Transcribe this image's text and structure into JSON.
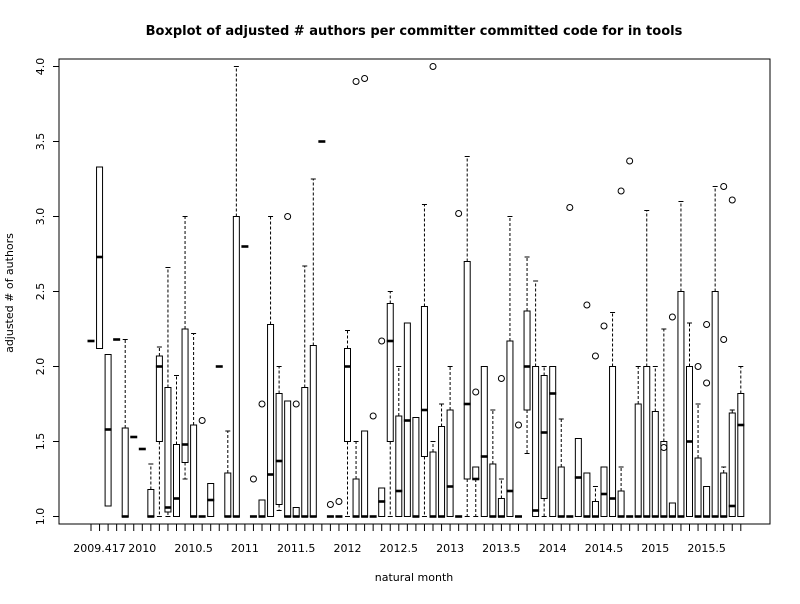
{
  "chart_data": {
    "type": "boxplot",
    "title": "Boxplot of adjusted # authors per committer committed code for in tools",
    "xlabel": "natural month",
    "ylabel": "adjusted # of authors",
    "ylim": [
      0.95,
      4.05
    ],
    "y_ticks": [
      "1.0",
      "1.5",
      "2.0",
      "2.5",
      "3.0",
      "3.5",
      "4.0"
    ],
    "x_tick_labels": [
      "2009.417",
      "2010",
      "2010.5",
      "2011",
      "2011.5",
      "2012",
      "2012.5",
      "2013",
      "2013.5",
      "2014",
      "2014.5",
      "2015",
      "2015.5"
    ],
    "x_tick_label_slots": [
      1,
      6,
      12,
      18,
      24,
      30,
      36,
      42,
      48,
      54,
      60,
      66,
      72
    ],
    "num_slots": 77,
    "boxes": [
      {
        "q1": 2.17,
        "med": 2.17,
        "q3": 2.17,
        "lo": 2.17,
        "hi": 2.17
      },
      {
        "q1": 2.12,
        "med": 2.73,
        "q3": 3.33,
        "lo": 2.12,
        "hi": 3.33
      },
      {
        "q1": 1.07,
        "med": 1.58,
        "q3": 2.08,
        "lo": 1.07,
        "hi": 2.08
      },
      {
        "q1": 2.18,
        "med": 2.18,
        "q3": 2.18,
        "lo": 2.18,
        "hi": 2.18
      },
      {
        "q1": 1.0,
        "med": 1.0,
        "q3": 1.59,
        "lo": 1.0,
        "hi": 2.18
      },
      {
        "q1": 1.53,
        "med": 1.53,
        "q3": 1.53,
        "lo": 1.53,
        "hi": 1.53
      },
      {
        "q1": 1.45,
        "med": 1.45,
        "q3": 1.45,
        "lo": 1.45,
        "hi": 1.45
      },
      {
        "q1": 1.0,
        "med": 1.0,
        "q3": 1.18,
        "lo": 1.0,
        "hi": 1.35
      },
      {
        "q1": 1.5,
        "med": 2.0,
        "q3": 2.07,
        "lo": 1.0,
        "hi": 2.13
      },
      {
        "q1": 1.03,
        "med": 1.06,
        "q3": 1.86,
        "lo": 1.0,
        "hi": 2.66
      },
      {
        "q1": 1.0,
        "med": 1.12,
        "q3": 1.48,
        "lo": 1.0,
        "hi": 1.94
      },
      {
        "q1": 1.36,
        "med": 1.48,
        "q3": 2.25,
        "lo": 1.25,
        "hi": 3.0
      },
      {
        "q1": 1.0,
        "med": 1.0,
        "q3": 1.61,
        "lo": 1.0,
        "hi": 2.22
      },
      {
        "q1": 1.0,
        "med": 1.0,
        "q3": 1.0,
        "lo": 1.0,
        "hi": 1.0,
        "outliers": [
          1.64
        ]
      },
      {
        "q1": 1.0,
        "med": 1.11,
        "q3": 1.22,
        "lo": 1.0,
        "hi": 1.22
      },
      {
        "q1": 2.0,
        "med": 2.0,
        "q3": 2.0,
        "lo": 2.0,
        "hi": 2.0
      },
      {
        "q1": 1.0,
        "med": 1.0,
        "q3": 1.29,
        "lo": 1.0,
        "hi": 1.57
      },
      {
        "q1": 1.0,
        "med": 1.0,
        "q3": 3.0,
        "lo": 1.0,
        "hi": 4.0
      },
      {
        "q1": 2.8,
        "med": 2.8,
        "q3": 2.8,
        "lo": 2.8,
        "hi": 2.8
      },
      {
        "q1": 1.0,
        "med": 1.0,
        "q3": 1.0,
        "lo": 1.0,
        "hi": 1.0,
        "outliers": [
          1.25
        ]
      },
      {
        "q1": 1.0,
        "med": 1.0,
        "q3": 1.11,
        "lo": 1.0,
        "hi": 1.11,
        "outliers": [
          1.75
        ]
      },
      {
        "q1": 1.0,
        "med": 1.28,
        "q3": 2.28,
        "lo": 1.0,
        "hi": 3.0
      },
      {
        "q1": 1.08,
        "med": 1.37,
        "q3": 1.82,
        "lo": 1.04,
        "hi": 2.0
      },
      {
        "q1": 1.0,
        "med": 1.0,
        "q3": 1.77,
        "lo": 1.0,
        "hi": 1.77,
        "outliers": [
          3.0
        ]
      },
      {
        "q1": 1.0,
        "med": 1.0,
        "q3": 1.06,
        "lo": 1.0,
        "hi": 1.06,
        "outliers": [
          1.75
        ]
      },
      {
        "q1": 1.0,
        "med": 1.0,
        "q3": 1.86,
        "lo": 1.0,
        "hi": 2.67
      },
      {
        "q1": 1.0,
        "med": 1.0,
        "q3": 2.14,
        "lo": 1.0,
        "hi": 3.25
      },
      {
        "q1": 3.5,
        "med": 3.5,
        "q3": 3.5,
        "lo": 3.5,
        "hi": 3.5
      },
      {
        "q1": 1.0,
        "med": 1.0,
        "q3": 1.0,
        "lo": 1.0,
        "hi": 1.0,
        "outliers": [
          1.08
        ]
      },
      {
        "q1": 1.0,
        "med": 1.0,
        "q3": 1.0,
        "lo": 1.0,
        "hi": 1.0,
        "outliers": [
          1.1
        ]
      },
      {
        "q1": 1.5,
        "med": 2.0,
        "q3": 2.12,
        "lo": 1.0,
        "hi": 2.24
      },
      {
        "q1": 1.0,
        "med": 1.0,
        "q3": 1.25,
        "lo": 1.0,
        "hi": 1.5,
        "outliers": [
          3.9
        ]
      },
      {
        "q1": 1.0,
        "med": 1.0,
        "q3": 1.57,
        "lo": 1.0,
        "hi": 1.57,
        "outliers": [
          3.92
        ]
      },
      {
        "q1": 1.0,
        "med": 1.0,
        "q3": 1.0,
        "lo": 1.0,
        "hi": 1.0,
        "outliers": [
          1.67
        ]
      },
      {
        "q1": 1.0,
        "med": 1.1,
        "q3": 1.19,
        "lo": 1.0,
        "hi": 1.19,
        "outliers": [
          2.17
        ]
      },
      {
        "q1": 1.5,
        "med": 2.17,
        "q3": 2.42,
        "lo": 1.0,
        "hi": 2.5
      },
      {
        "q1": 1.0,
        "med": 1.17,
        "q3": 1.67,
        "lo": 1.0,
        "hi": 2.0
      },
      {
        "q1": 1.0,
        "med": 1.64,
        "q3": 2.29,
        "lo": 1.0,
        "hi": 2.29
      },
      {
        "q1": 1.0,
        "med": 1.0,
        "q3": 1.66,
        "lo": 1.0,
        "hi": 1.66
      },
      {
        "q1": 1.4,
        "med": 1.71,
        "q3": 2.4,
        "lo": 1.0,
        "hi": 3.08
      },
      {
        "q1": 1.0,
        "med": 1.0,
        "q3": 1.43,
        "lo": 1.0,
        "hi": 1.5,
        "outliers": [
          4.0
        ]
      },
      {
        "q1": 1.0,
        "med": 1.0,
        "q3": 1.6,
        "lo": 1.0,
        "hi": 1.75
      },
      {
        "q1": 1.0,
        "med": 1.2,
        "q3": 1.71,
        "lo": 1.0,
        "hi": 2.0
      },
      {
        "q1": 1.0,
        "med": 1.0,
        "q3": 1.0,
        "lo": 1.0,
        "hi": 1.0,
        "outliers": [
          3.02
        ]
      },
      {
        "q1": 1.25,
        "med": 1.75,
        "q3": 2.7,
        "lo": 1.0,
        "hi": 3.4
      },
      {
        "q1": 1.25,
        "med": 1.25,
        "q3": 1.33,
        "lo": 1.0,
        "hi": 1.33,
        "outliers": [
          1.83
        ]
      },
      {
        "q1": 1.0,
        "med": 1.4,
        "q3": 2.0,
        "lo": 1.0,
        "hi": 2.0
      },
      {
        "q1": 1.0,
        "med": 1.0,
        "q3": 1.35,
        "lo": 1.0,
        "hi": 1.71
      },
      {
        "q1": 1.0,
        "med": 1.0,
        "q3": 1.12,
        "lo": 1.0,
        "hi": 1.25,
        "outliers": [
          1.92
        ]
      },
      {
        "q1": 1.0,
        "med": 1.17,
        "q3": 2.17,
        "lo": 1.0,
        "hi": 3.0
      },
      {
        "q1": 1.0,
        "med": 1.0,
        "q3": 1.0,
        "lo": 1.0,
        "hi": 1.0,
        "outliers": [
          1.61
        ]
      },
      {
        "q1": 1.71,
        "med": 2.0,
        "q3": 2.37,
        "lo": 1.42,
        "hi": 2.73
      },
      {
        "q1": 1.0,
        "med": 1.04,
        "q3": 2.0,
        "lo": 1.0,
        "hi": 2.57
      },
      {
        "q1": 1.12,
        "med": 1.56,
        "q3": 1.94,
        "lo": 1.0,
        "hi": 2.0
      },
      {
        "q1": 1.0,
        "med": 1.82,
        "q3": 2.0,
        "lo": 1.0,
        "hi": 2.0
      },
      {
        "q1": 1.0,
        "med": 1.0,
        "q3": 1.33,
        "lo": 1.0,
        "hi": 1.65
      },
      {
        "q1": 1.0,
        "med": 1.0,
        "q3": 1.0,
        "lo": 1.0,
        "hi": 1.0,
        "outliers": [
          3.06
        ]
      },
      {
        "q1": 1.0,
        "med": 1.26,
        "q3": 1.52,
        "lo": 1.0,
        "hi": 1.52
      },
      {
        "q1": 1.0,
        "med": 1.0,
        "q3": 1.29,
        "lo": 1.0,
        "hi": 1.29,
        "outliers": [
          2.41
        ]
      },
      {
        "q1": 1.0,
        "med": 1.0,
        "q3": 1.1,
        "lo": 1.0,
        "hi": 1.2,
        "outliers": [
          2.07
        ]
      },
      {
        "q1": 1.0,
        "med": 1.15,
        "q3": 1.33,
        "lo": 1.0,
        "hi": 1.33,
        "outliers": [
          2.27
        ]
      },
      {
        "q1": 1.0,
        "med": 1.12,
        "q3": 2.0,
        "lo": 1.0,
        "hi": 2.36
      },
      {
        "q1": 1.0,
        "med": 1.0,
        "q3": 1.17,
        "lo": 1.0,
        "hi": 1.33,
        "outliers": [
          3.17
        ]
      },
      {
        "q1": 1.0,
        "med": 1.0,
        "q3": 1.0,
        "lo": 1.0,
        "hi": 1.0,
        "outliers": [
          3.37
        ]
      },
      {
        "q1": 1.0,
        "med": 1.0,
        "q3": 1.75,
        "lo": 1.0,
        "hi": 2.0
      },
      {
        "q1": 1.0,
        "med": 1.0,
        "q3": 2.0,
        "lo": 1.0,
        "hi": 3.04
      },
      {
        "q1": 1.0,
        "med": 1.0,
        "q3": 1.7,
        "lo": 1.0,
        "hi": 2.0
      },
      {
        "q1": 1.0,
        "med": 1.0,
        "q3": 1.5,
        "lo": 1.0,
        "hi": 2.25,
        "outliers": [
          1.46
        ]
      },
      {
        "q1": 1.0,
        "med": 1.0,
        "q3": 1.09,
        "lo": 1.0,
        "hi": 1.09,
        "outliers": [
          2.33
        ]
      },
      {
        "q1": 1.0,
        "med": 1.0,
        "q3": 2.5,
        "lo": 1.0,
        "hi": 3.1
      },
      {
        "q1": 1.0,
        "med": 1.5,
        "q3": 2.0,
        "lo": 1.0,
        "hi": 2.29
      },
      {
        "q1": 1.0,
        "med": 1.0,
        "q3": 1.39,
        "lo": 1.0,
        "hi": 1.75,
        "outliers": [
          2.0
        ]
      },
      {
        "q1": 1.0,
        "med": 1.0,
        "q3": 1.2,
        "lo": 1.0,
        "hi": 1.2,
        "outliers": [
          2.28,
          1.89
        ]
      },
      {
        "q1": 1.0,
        "med": 1.0,
        "q3": 2.5,
        "lo": 1.0,
        "hi": 3.2
      },
      {
        "q1": 1.0,
        "med": 1.0,
        "q3": 1.29,
        "lo": 1.0,
        "hi": 1.33,
        "outliers": [
          3.2,
          2.18
        ]
      },
      {
        "q1": 1.0,
        "med": 1.07,
        "q3": 1.69,
        "lo": 1.0,
        "hi": 1.71,
        "outliers": [
          3.11
        ]
      },
      {
        "q1": 1.0,
        "med": 1.61,
        "q3": 1.82,
        "lo": 1.0,
        "hi": 2.0
      }
    ]
  }
}
